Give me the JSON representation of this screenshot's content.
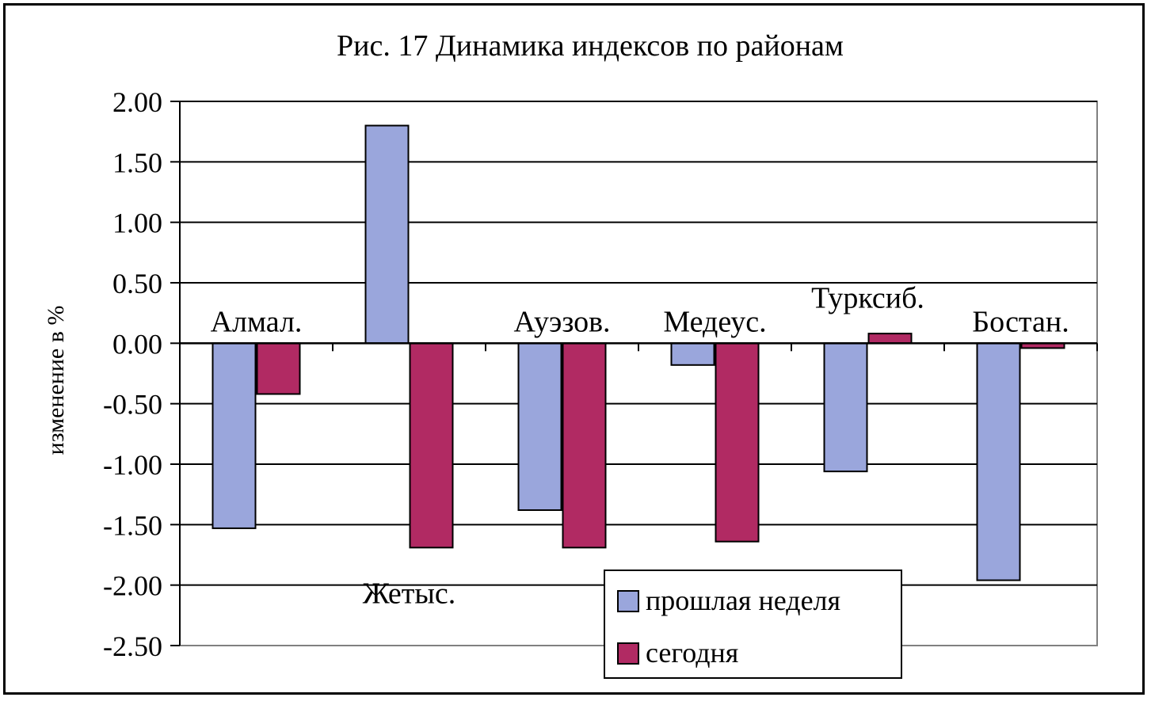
{
  "chart_data": {
    "type": "bar",
    "title": "Рис. 17 Динамика индексов по районам",
    "xlabel": "",
    "ylabel": "изменение в %",
    "ylim": [
      -2.5,
      2.0
    ],
    "yticks": [
      2.0,
      1.5,
      1.0,
      0.5,
      0.0,
      -0.5,
      -1.0,
      -1.5,
      -2.0,
      -2.5
    ],
    "ytick_labels": [
      "2.00",
      "1.50",
      "1.00",
      "0.50",
      "0.00",
      "-0.50",
      "-1.00",
      "-1.50",
      "-2.00",
      "-2.50"
    ],
    "grid": true,
    "legend_position": "bottom-right",
    "categories": [
      "Алмал.",
      "Жетыс.",
      "Ауэзов.",
      "Медеус.",
      "Турксиб.",
      "Бостан."
    ],
    "series": [
      {
        "name": "прошлая неделя",
        "color": "#9aa6dc",
        "values": [
          -1.53,
          1.8,
          -1.38,
          -0.18,
          -1.06,
          -1.96
        ]
      },
      {
        "name": "сегодня",
        "color": "#b12a63",
        "values": [
          -0.42,
          -1.69,
          -1.69,
          -1.64,
          0.08,
          -0.04
        ]
      }
    ]
  }
}
